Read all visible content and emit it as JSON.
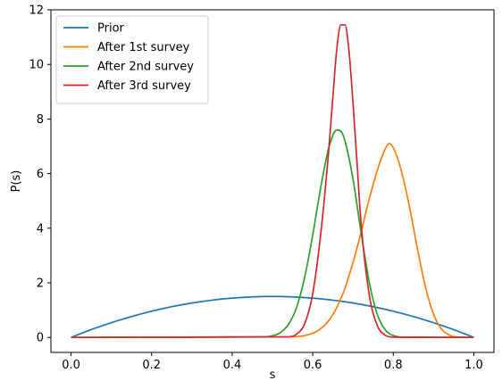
{
  "chart_data": {
    "type": "line",
    "xlabel": "s",
    "ylabel": "P(s)",
    "xlim": [
      -0.05,
      1.05
    ],
    "ylim": [
      -0.55,
      12.0
    ],
    "x_ticks": [
      0.0,
      0.2,
      0.4,
      0.6,
      0.8,
      1.0
    ],
    "x_tick_labels": [
      "0.0",
      "0.2",
      "0.4",
      "0.6",
      "0.8",
      "1.0"
    ],
    "y_ticks": [
      0,
      2,
      4,
      6,
      8,
      10,
      12
    ],
    "y_tick_labels": [
      "0",
      "2",
      "4",
      "6",
      "8",
      "10",
      "12"
    ],
    "grid": false,
    "legend_position": "top-left",
    "series": [
      {
        "name": "Prior",
        "color": "#1f77b4",
        "x": [
          0.0,
          0.05,
          0.1,
          0.15,
          0.2,
          0.25,
          0.3,
          0.35,
          0.4,
          0.45,
          0.5,
          0.55,
          0.6,
          0.65,
          0.7,
          0.75,
          0.8,
          0.85,
          0.9,
          0.95,
          1.0
        ],
        "y": [
          0.0,
          0.285,
          0.54,
          0.765,
          0.96,
          1.125,
          1.26,
          1.365,
          1.44,
          1.485,
          1.5,
          1.485,
          1.44,
          1.365,
          1.26,
          1.125,
          0.96,
          0.765,
          0.54,
          0.285,
          0.0
        ]
      },
      {
        "name": "After 1st survey",
        "color": "#ff7f0e",
        "x": [
          0.0,
          0.55,
          0.6,
          0.62,
          0.64,
          0.66,
          0.68,
          0.7,
          0.72,
          0.74,
          0.76,
          0.78,
          0.79,
          0.8,
          0.82,
          0.84,
          0.86,
          0.88,
          0.9,
          0.92,
          0.94,
          0.96,
          1.0
        ],
        "y": [
          0.0,
          0.02,
          0.15,
          0.32,
          0.62,
          1.1,
          1.8,
          2.75,
          3.85,
          5.05,
          6.1,
          6.9,
          7.1,
          6.95,
          6.1,
          4.8,
          3.25,
          1.85,
          0.85,
          0.3,
          0.08,
          0.01,
          0.0
        ]
      },
      {
        "name": "After 2nd survey",
        "color": "#2ca02c",
        "x": [
          0.0,
          0.48,
          0.5,
          0.52,
          0.54,
          0.56,
          0.58,
          0.6,
          0.62,
          0.64,
          0.66,
          0.67,
          0.68,
          0.7,
          0.72,
          0.74,
          0.76,
          0.78,
          0.8,
          0.84,
          1.0
        ],
        "y": [
          0.0,
          0.02,
          0.06,
          0.18,
          0.48,
          1.1,
          2.2,
          3.75,
          5.5,
          6.95,
          7.6,
          7.55,
          7.2,
          5.8,
          3.85,
          2.05,
          0.85,
          0.28,
          0.07,
          0.0,
          0.0
        ]
      },
      {
        "name": "After 3rd survey",
        "color": "#d62728",
        "x": [
          0.0,
          0.54,
          0.56,
          0.58,
          0.6,
          0.62,
          0.64,
          0.65,
          0.66,
          0.67,
          0.68,
          0.69,
          0.7,
          0.71,
          0.72,
          0.74,
          0.76,
          0.78,
          0.8,
          1.0
        ],
        "y": [
          0.0,
          0.02,
          0.12,
          0.5,
          1.6,
          3.8,
          6.9,
          8.8,
          10.6,
          11.45,
          11.45,
          10.5,
          8.6,
          6.4,
          4.2,
          1.6,
          0.45,
          0.08,
          0.01,
          0.0
        ]
      }
    ]
  }
}
